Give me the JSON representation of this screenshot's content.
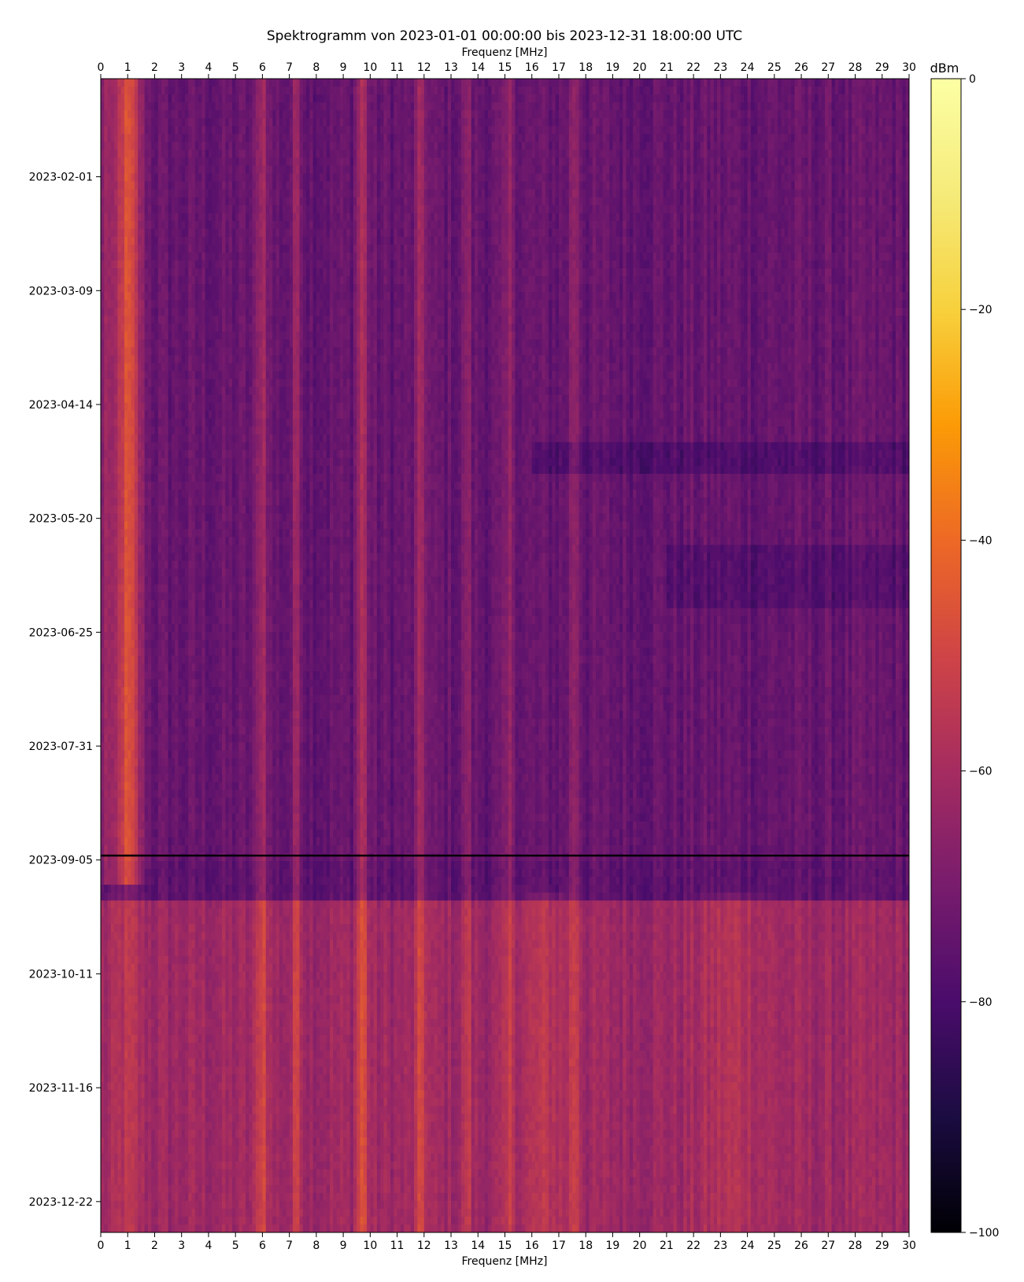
{
  "chart_data": {
    "type": "heatmap",
    "title": "Spektrogramm von 2023-01-01 00:00:00 bis 2023-12-31 18:00:00 UTC",
    "xlabel": "Frequenz [MHz]",
    "xlim": [
      0,
      30
    ],
    "x_ticks": [
      "0",
      "1",
      "2",
      "3",
      "4",
      "5",
      "6",
      "7",
      "8",
      "9",
      "10",
      "11",
      "12",
      "13",
      "14",
      "15",
      "16",
      "17",
      "18",
      "19",
      "20",
      "21",
      "22",
      "23",
      "24",
      "25",
      "26",
      "27",
      "28",
      "29",
      "30"
    ],
    "ylim": [
      "2023-01-01",
      "2023-12-31"
    ],
    "y_ticks": [
      {
        "label": "2023-02-01",
        "day": 31
      },
      {
        "label": "2023-03-09",
        "day": 67
      },
      {
        "label": "2023-04-14",
        "day": 103
      },
      {
        "label": "2023-05-20",
        "day": 139
      },
      {
        "label": "2023-06-25",
        "day": 175
      },
      {
        "label": "2023-07-31",
        "day": 211
      },
      {
        "label": "2023-09-05",
        "day": 247
      },
      {
        "label": "2023-10-11",
        "day": 283
      },
      {
        "label": "2023-11-16",
        "day": 319
      },
      {
        "label": "2023-12-22",
        "day": 355
      }
    ],
    "colorbar": {
      "label": "dBm",
      "range": [
        -100,
        0
      ],
      "ticks": [
        "0",
        "−20",
        "−40",
        "−60",
        "−80",
        "−100"
      ],
      "colormap": "inferno"
    }
  }
}
